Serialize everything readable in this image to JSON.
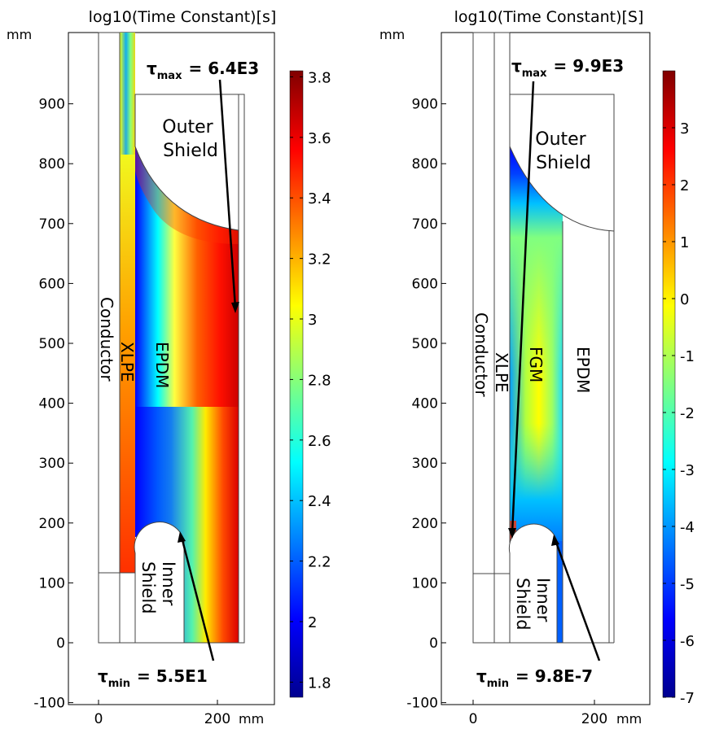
{
  "panels": [
    {
      "title": "log10(Time Constant)[s]",
      "axis_unit": "mm",
      "y_ticks": [
        "-100",
        "0",
        "100",
        "200",
        "300",
        "400",
        "500",
        "600",
        "700",
        "800",
        "900"
      ],
      "x_ticks": [
        "0",
        "200"
      ],
      "region_labels": {
        "conductor": "Conductor",
        "xlpe": "XLPE",
        "epdm": "EPDM",
        "outer_shield": [
          "Outer",
          "Shield"
        ],
        "inner_shield": [
          "Inner",
          "Shield"
        ]
      },
      "tau_max": {
        "symbol": "τ",
        "sub": "max",
        "value": "= 6.4E3"
      },
      "tau_min": {
        "symbol": "τ",
        "sub": "min",
        "value": "= 5.5E1"
      },
      "colorbar_ticks": [
        "3.8",
        "3.6",
        "3.4",
        "3.2",
        "3",
        "2.8",
        "2.6",
        "2.4",
        "2.2",
        "2",
        "1.8"
      ],
      "colorbar_range": [
        1.75,
        3.82
      ]
    },
    {
      "title": "log10(Time Constant)[S]",
      "axis_unit": "mm",
      "y_ticks": [
        "-100",
        "0",
        "100",
        "200",
        "300",
        "400",
        "500",
        "600",
        "700",
        "800",
        "900"
      ],
      "x_ticks": [
        "0",
        "200"
      ],
      "region_labels": {
        "conductor": "Conductor",
        "xlpe": "XLPE",
        "fgm": "FGM",
        "epdm": "EPDM",
        "outer_shield": [
          "Outer",
          "Shield"
        ],
        "inner_shield": [
          "Inner",
          "Shield"
        ]
      },
      "tau_max": {
        "symbol": "τ",
        "sub": "max",
        "value": "= 9.9E3"
      },
      "tau_min": {
        "symbol": "τ",
        "sub": "min",
        "value": "= 9.8E-7"
      },
      "colorbar_ticks": [
        "3",
        "2",
        "1",
        "0",
        "-1",
        "-2",
        "-3",
        "-4",
        "-5",
        "-6",
        "-7"
      ],
      "colorbar_range": [
        -7,
        4
      ]
    }
  ],
  "colors": {
    "jet_low": "#00008f",
    "jet_high": "#800000",
    "outline": "#444444"
  }
}
